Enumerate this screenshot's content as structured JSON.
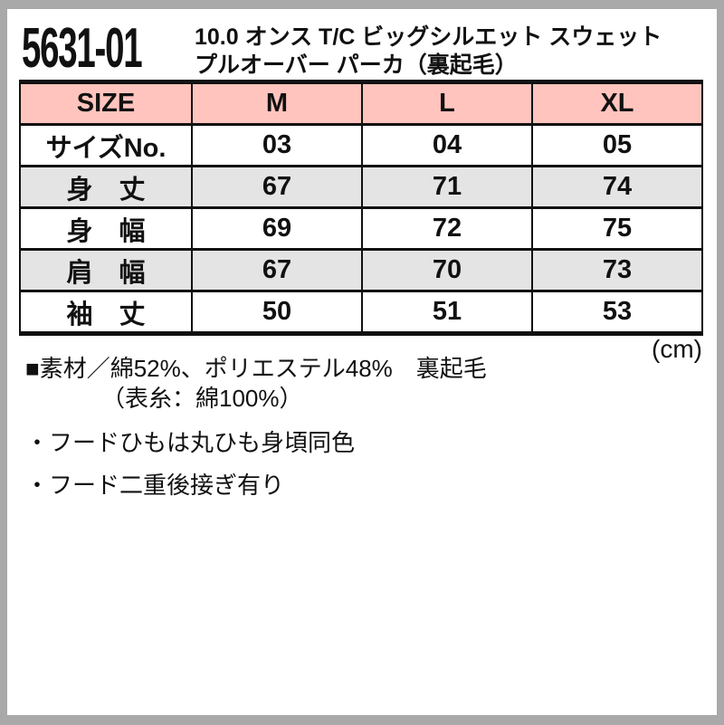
{
  "product": {
    "code": "5631-01",
    "title_line1": "10.0 オンス T/C ビッグシルエット スウェット",
    "title_line2": "プルオーバー パーカ（裏起毛）"
  },
  "size_table": {
    "unit_label": "(cm)",
    "header": [
      "SIZE",
      "M",
      "L",
      "XL"
    ],
    "rows": [
      {
        "label": "サイズNo.",
        "values": [
          "03",
          "04",
          "05"
        ]
      },
      {
        "label": "身　丈",
        "values": [
          "67",
          "71",
          "74"
        ]
      },
      {
        "label": "身　幅",
        "values": [
          "69",
          "72",
          "75"
        ]
      },
      {
        "label": "肩　幅",
        "values": [
          "67",
          "70",
          "73"
        ]
      },
      {
        "label": "袖　丈",
        "values": [
          "50",
          "51",
          "53"
        ]
      }
    ]
  },
  "details": {
    "material_line1": "■素材／綿52%、ポリエステル48%　裏起毛",
    "material_line2": "（表糸：綿100%）",
    "notes": [
      "・フードひもは丸ひも身頃同色",
      "・フード二重後接ぎ有り"
    ]
  },
  "colors": {
    "header_pink": "#ffc4bd",
    "row_gray": "#e4e4e4",
    "frame_gray": "#a9a9a9",
    "text_black": "#111111"
  }
}
